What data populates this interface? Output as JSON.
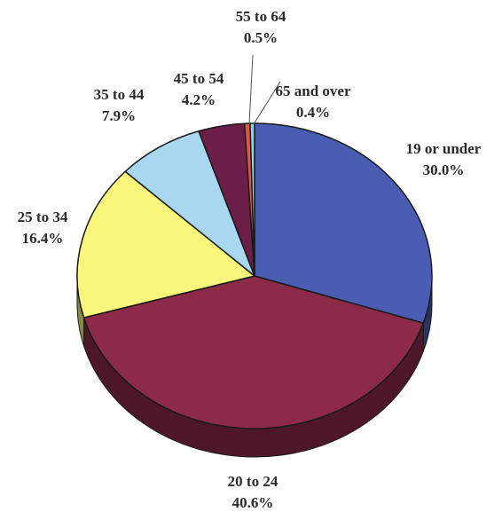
{
  "chart_data": {
    "type": "pie",
    "title": "",
    "start_angle_deg": -90,
    "direction": "clockwise",
    "slices": [
      {
        "label": "19 or under",
        "value": 30.0,
        "value_label": "30.0%",
        "color": "#4a5db3"
      },
      {
        "label": "20 to 24",
        "value": 40.6,
        "value_label": "40.6%",
        "color": "#8c2a48"
      },
      {
        "label": "25 to 34",
        "value": 16.4,
        "value_label": "16.4%",
        "color": "#fbf77c"
      },
      {
        "label": "35 to 44",
        "value": 7.9,
        "value_label": "7.9%",
        "color": "#a9d7f0"
      },
      {
        "label": "45 to 54",
        "value": 4.2,
        "value_label": "4.2%",
        "color": "#6b1e48"
      },
      {
        "label": "55 to 64",
        "value": 0.5,
        "value_label": "0.5%",
        "color": "#e45540"
      },
      {
        "label": "65 and over",
        "value": 0.4,
        "value_label": "0.4%",
        "color": "#8fd3e8"
      }
    ]
  }
}
